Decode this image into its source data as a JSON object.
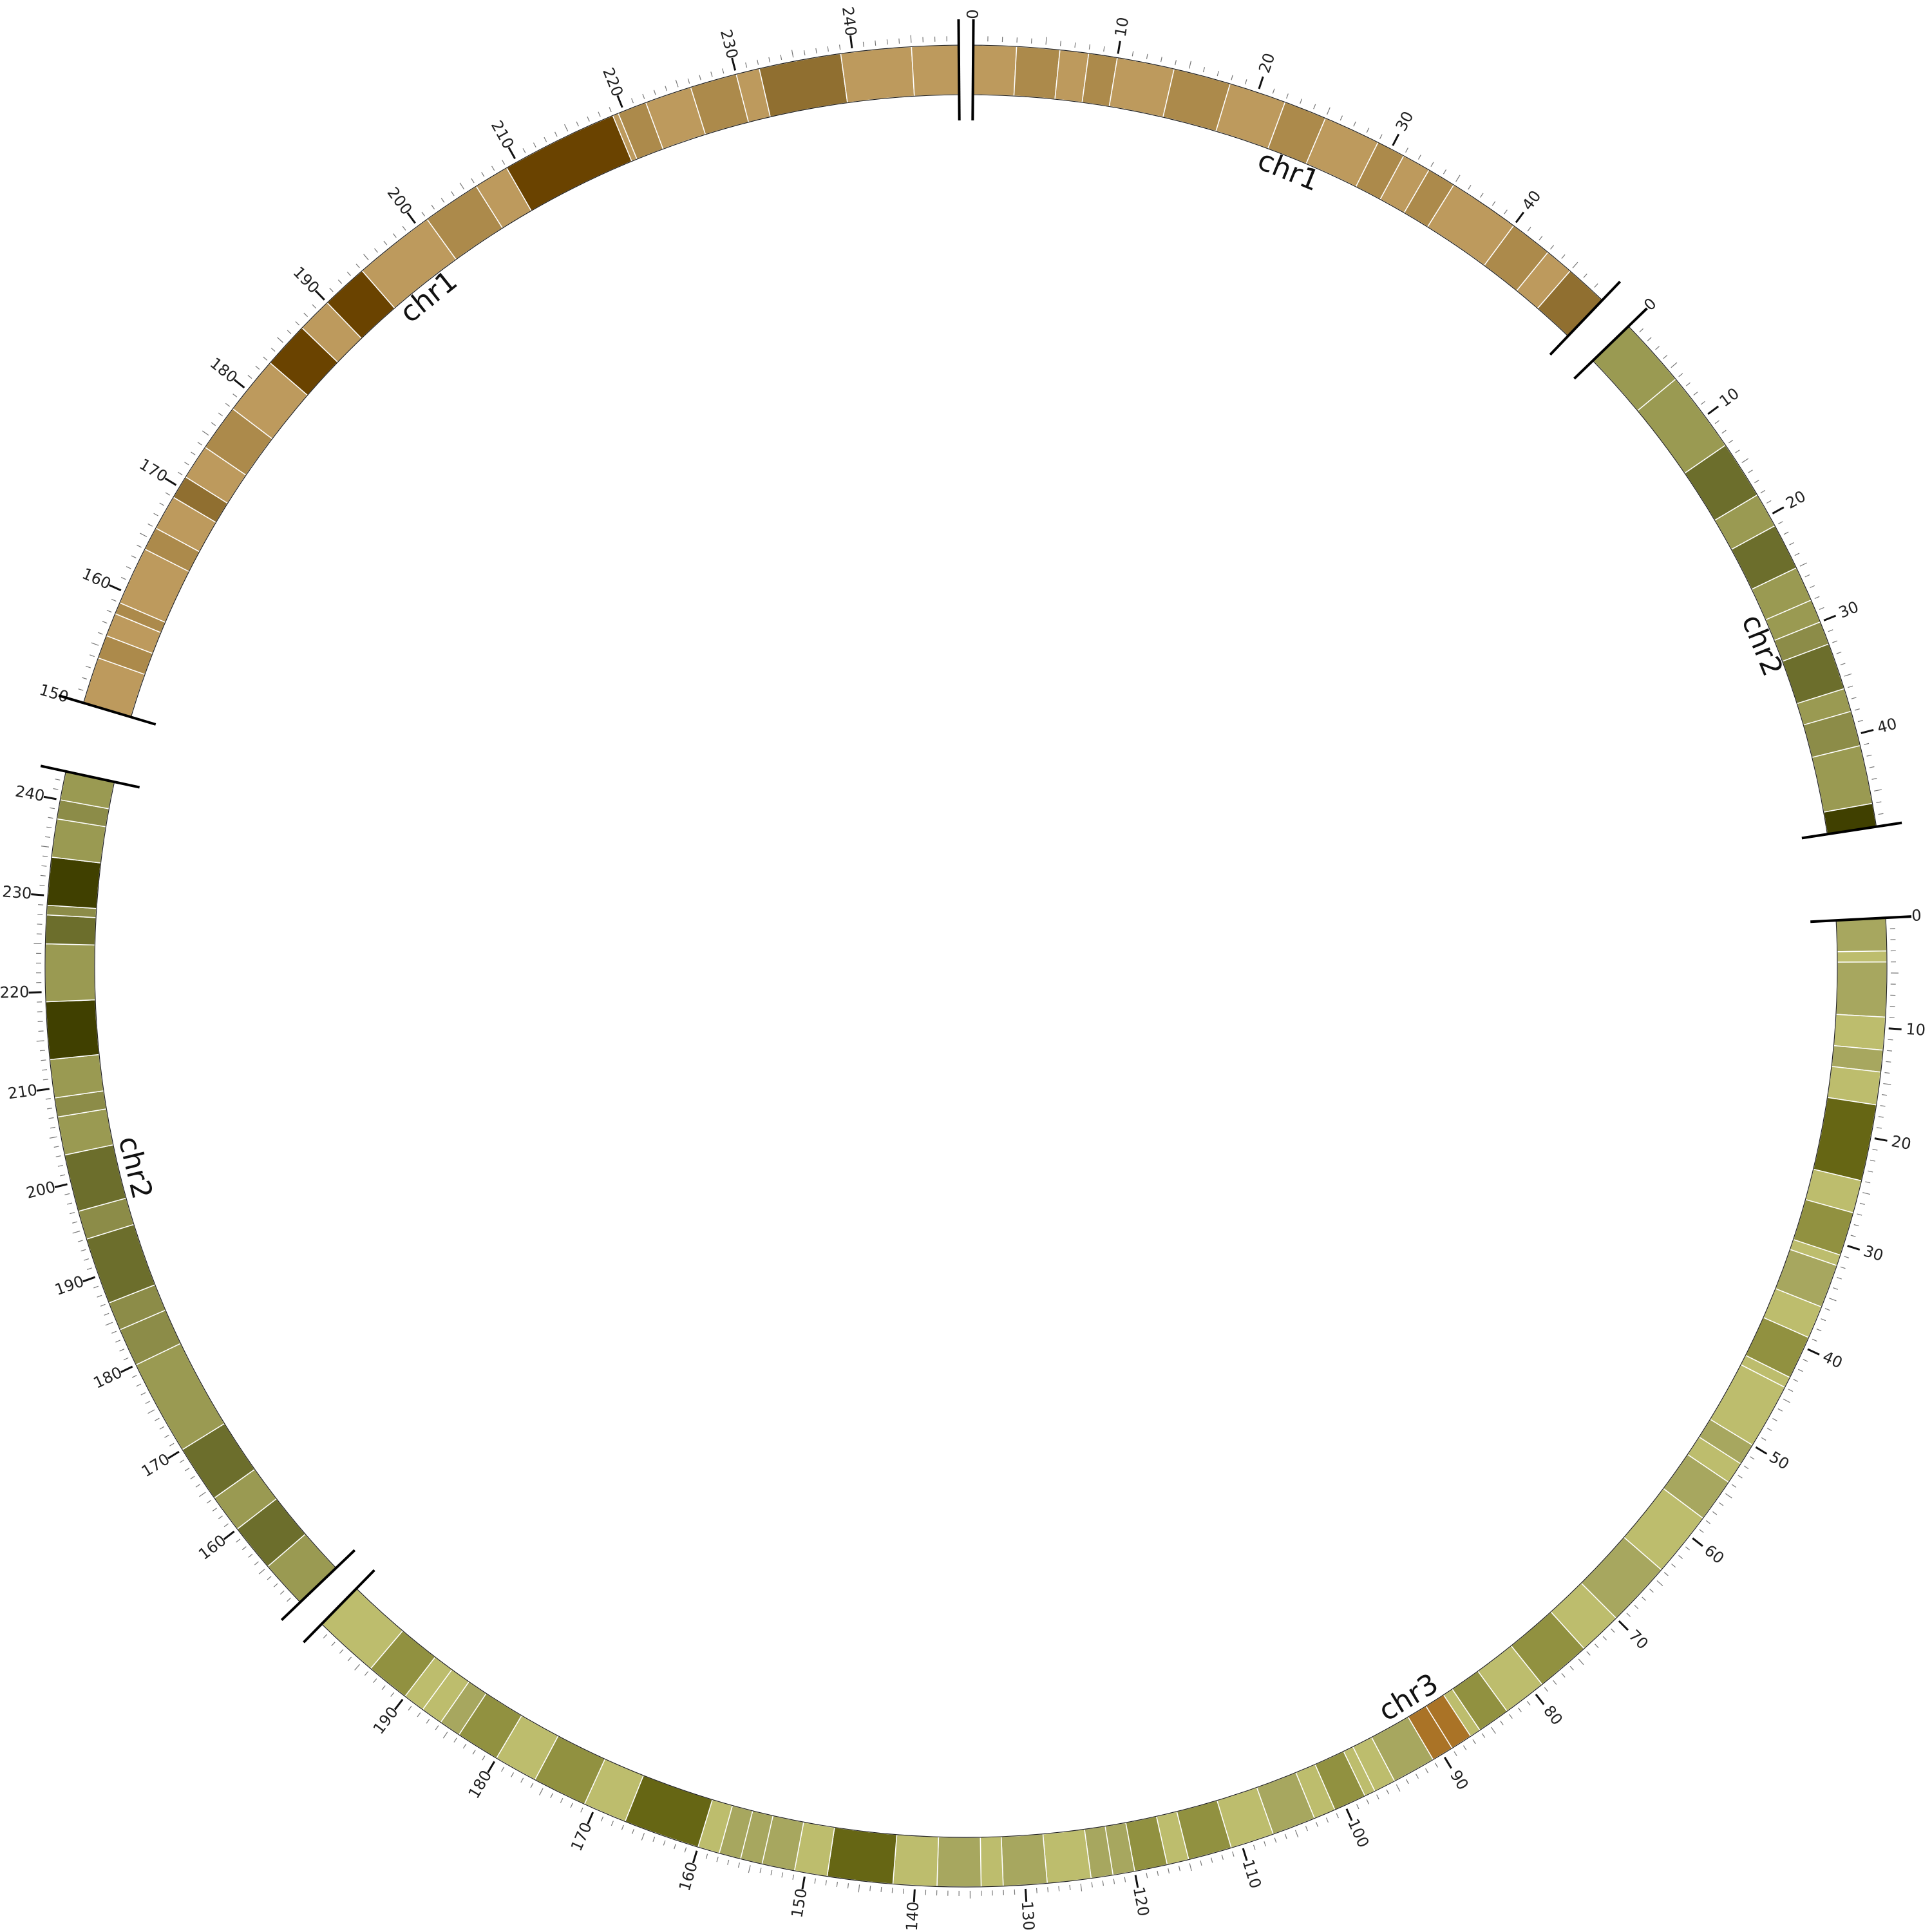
{
  "chart_data": {
    "type": "circos-ideogram",
    "title": "",
    "tick_unit": "Mb",
    "segments": [
      {
        "id": "chr1-a",
        "label": "chr1",
        "start": 0,
        "end": 48,
        "ticks": [
          "0",
          "10",
          "20",
          "30",
          "40"
        ],
        "bands": [
          {
            "start": 0,
            "end": 3,
            "color": "#bd9a5d"
          },
          {
            "start": 3,
            "end": 6,
            "color": "#ac8a4b"
          },
          {
            "start": 6,
            "end": 8,
            "color": "#bd9a5d"
          },
          {
            "start": 8,
            "end": 10,
            "color": "#ac8a4b"
          },
          {
            "start": 10,
            "end": 14,
            "color": "#bd9a5d"
          },
          {
            "start": 14,
            "end": 18,
            "color": "#ac8a4b"
          },
          {
            "start": 18,
            "end": 22,
            "color": "#bd9a5d"
          },
          {
            "start": 22,
            "end": 25,
            "color": "#ac8a4b"
          },
          {
            "start": 25,
            "end": 29,
            "color": "#bd9a5d"
          },
          {
            "start": 29,
            "end": 31,
            "color": "#ac8a4b"
          },
          {
            "start": 31,
            "end": 33,
            "color": "#bd9a5d"
          },
          {
            "start": 33,
            "end": 35,
            "color": "#ac8a4b"
          },
          {
            "start": 35,
            "end": 40,
            "color": "#bd9a5d"
          },
          {
            "start": 40,
            "end": 43,
            "color": "#ac8a4b"
          },
          {
            "start": 43,
            "end": 45,
            "color": "#bd9a5d"
          },
          {
            "start": 45,
            "end": 48,
            "color": "#906f30"
          }
        ]
      },
      {
        "id": "chr2-a",
        "label": "chr2",
        "start": 0,
        "end": 48,
        "ticks": [
          "0",
          "10",
          "20",
          "30",
          "40"
        ],
        "bands": [
          {
            "start": 0,
            "end": 6,
            "color": "#9a9a52"
          },
          {
            "start": 6,
            "end": 13,
            "color": "#9a9a52"
          },
          {
            "start": 13,
            "end": 18,
            "color": "#6c6e2c"
          },
          {
            "start": 18,
            "end": 21,
            "color": "#9a9a52"
          },
          {
            "start": 21,
            "end": 25,
            "color": "#6c6e2c"
          },
          {
            "start": 25,
            "end": 28,
            "color": "#9a9a52"
          },
          {
            "start": 28,
            "end": 30,
            "color": "#9a9a52"
          },
          {
            "start": 30,
            "end": 32,
            "color": "#8c8c48"
          },
          {
            "start": 32,
            "end": 36,
            "color": "#6c6e2c"
          },
          {
            "start": 36,
            "end": 38,
            "color": "#9a9a52"
          },
          {
            "start": 38,
            "end": 41,
            "color": "#8c8c48"
          },
          {
            "start": 41,
            "end": 46,
            "color": "#9a9a52"
          },
          {
            "start": 46,
            "end": 48,
            "color": "#404000"
          }
        ]
      },
      {
        "id": "chr3",
        "label": "chr3",
        "start": 0,
        "end": 200,
        "ticks": [
          "0",
          "10",
          "20",
          "30",
          "40",
          "50",
          "60",
          "70",
          "80",
          "90",
          "100",
          "110",
          "120",
          "130",
          "140",
          "150",
          "160",
          "170",
          "180",
          "190"
        ],
        "bands": [
          {
            "start": 0,
            "end": 3,
            "color": "#a7a75f"
          },
          {
            "start": 3,
            "end": 4,
            "color": "#bdbd6d"
          },
          {
            "start": 4,
            "end": 9,
            "color": "#a7a75f"
          },
          {
            "start": 9,
            "end": 12,
            "color": "#bdbd6d"
          },
          {
            "start": 12,
            "end": 14,
            "color": "#a7a75f"
          },
          {
            "start": 14,
            "end": 17,
            "color": "#bdbd6d"
          },
          {
            "start": 17,
            "end": 24,
            "color": "#666614"
          },
          {
            "start": 24,
            "end": 27,
            "color": "#bdbd6d"
          },
          {
            "start": 27,
            "end": 31,
            "color": "#919140"
          },
          {
            "start": 31,
            "end": 32,
            "color": "#bdbd6d"
          },
          {
            "start": 32,
            "end": 36,
            "color": "#a7a75f"
          },
          {
            "start": 36,
            "end": 39,
            "color": "#bdbd6d"
          },
          {
            "start": 39,
            "end": 43,
            "color": "#919140"
          },
          {
            "start": 43,
            "end": 44,
            "color": "#bdbd6d"
          },
          {
            "start": 44,
            "end": 50,
            "color": "#bdbd6d"
          },
          {
            "start": 50,
            "end": 52,
            "color": "#a7a75f"
          },
          {
            "start": 52,
            "end": 54,
            "color": "#bdbd6d"
          },
          {
            "start": 54,
            "end": 58,
            "color": "#a7a75f"
          },
          {
            "start": 58,
            "end": 64,
            "color": "#bdbd6d"
          },
          {
            "start": 64,
            "end": 70,
            "color": "#a7a75f"
          },
          {
            "start": 70,
            "end": 74,
            "color": "#bdbd6d"
          },
          {
            "start": 74,
            "end": 79,
            "color": "#919140"
          },
          {
            "start": 79,
            "end": 83,
            "color": "#bdbd6d"
          },
          {
            "start": 83,
            "end": 86,
            "color": "#919140"
          },
          {
            "start": 86,
            "end": 87,
            "color": "#bdbd6d"
          },
          {
            "start": 87,
            "end": 89,
            "color": "#aa7326"
          },
          {
            "start": 89,
            "end": 91,
            "color": "#aa7326"
          },
          {
            "start": 91,
            "end": 95,
            "color": "#a7a75f"
          },
          {
            "start": 95,
            "end": 97,
            "color": "#bdbd6d"
          },
          {
            "start": 97,
            "end": 98,
            "color": "#bdbd6d"
          },
          {
            "start": 98,
            "end": 101,
            "color": "#919140"
          },
          {
            "start": 101,
            "end": 103,
            "color": "#bdbd6d"
          },
          {
            "start": 103,
            "end": 107,
            "color": "#a7a75f"
          },
          {
            "start": 107,
            "end": 111,
            "color": "#bdbd6d"
          },
          {
            "start": 111,
            "end": 115,
            "color": "#919140"
          },
          {
            "start": 115,
            "end": 117,
            "color": "#bdbd6d"
          },
          {
            "start": 117,
            "end": 120,
            "color": "#919140"
          },
          {
            "start": 120,
            "end": 122,
            "color": "#a7a75f"
          },
          {
            "start": 122,
            "end": 124,
            "color": "#a7a75f"
          },
          {
            "start": 124,
            "end": 128,
            "color": "#bdbd6d"
          },
          {
            "start": 128,
            "end": 132,
            "color": "#a7a75f"
          },
          {
            "start": 132,
            "end": 134,
            "color": "#bdbd6d"
          },
          {
            "start": 134,
            "end": 138,
            "color": "#a7a75f"
          },
          {
            "start": 138,
            "end": 142,
            "color": "#bdbd6d"
          },
          {
            "start": 142,
            "end": 148,
            "color": "#666614"
          },
          {
            "start": 148,
            "end": 151,
            "color": "#bdbd6d"
          },
          {
            "start": 151,
            "end": 154,
            "color": "#a7a75f"
          },
          {
            "start": 154,
            "end": 156,
            "color": "#a7a75f"
          },
          {
            "start": 156,
            "end": 158,
            "color": "#a7a75f"
          },
          {
            "start": 158,
            "end": 160,
            "color": "#bdbd6d"
          },
          {
            "start": 160,
            "end": 167,
            "color": "#666614"
          },
          {
            "start": 167,
            "end": 171,
            "color": "#bdbd6d"
          },
          {
            "start": 171,
            "end": 176,
            "color": "#919140"
          },
          {
            "start": 176,
            "end": 180,
            "color": "#bdbd6d"
          },
          {
            "start": 180,
            "end": 184,
            "color": "#919140"
          },
          {
            "start": 184,
            "end": 186,
            "color": "#a7a75f"
          },
          {
            "start": 186,
            "end": 188,
            "color": "#bdbd6d"
          },
          {
            "start": 188,
            "end": 190,
            "color": "#bdbd6d"
          },
          {
            "start": 190,
            "end": 194,
            "color": "#919140"
          },
          {
            "start": 194,
            "end": 200,
            "color": "#bdbd6d"
          }
        ]
      },
      {
        "id": "chr2-b",
        "label": "chr2",
        "start": 150,
        "end": 243,
        "ticks": [
          "160",
          "170",
          "180",
          "190",
          "200",
          "210",
          "220",
          "230",
          "240"
        ],
        "bands": [
          {
            "start": 150,
            "end": 155,
            "color": "#9a9a52"
          },
          {
            "start": 155,
            "end": 160,
            "color": "#6c6e2c"
          },
          {
            "start": 160,
            "end": 164,
            "color": "#9a9a52"
          },
          {
            "start": 164,
            "end": 170,
            "color": "#6c6e2c"
          },
          {
            "start": 170,
            "end": 180,
            "color": "#9a9a52"
          },
          {
            "start": 180,
            "end": 184,
            "color": "#8c8c48"
          },
          {
            "start": 184,
            "end": 187,
            "color": "#8c8c48"
          },
          {
            "start": 187,
            "end": 194,
            "color": "#6c6e2c"
          },
          {
            "start": 194,
            "end": 197,
            "color": "#8c8c48"
          },
          {
            "start": 197,
            "end": 203,
            "color": "#6c6e2c"
          },
          {
            "start": 203,
            "end": 207,
            "color": "#9a9a52"
          },
          {
            "start": 207,
            "end": 209,
            "color": "#8c8c48"
          },
          {
            "start": 209,
            "end": 213,
            "color": "#9a9a52"
          },
          {
            "start": 213,
            "end": 219,
            "color": "#404000"
          },
          {
            "start": 219,
            "end": 225,
            "color": "#9a9a52"
          },
          {
            "start": 225,
            "end": 228,
            "color": "#6c6e2c"
          },
          {
            "start": 228,
            "end": 229,
            "color": "#8c8c48"
          },
          {
            "start": 229,
            "end": 234,
            "color": "#404000"
          },
          {
            "start": 234,
            "end": 238,
            "color": "#9a9a52"
          },
          {
            "start": 238,
            "end": 240,
            "color": "#8c8c48"
          },
          {
            "start": 240,
            "end": 243,
            "color": "#9a9a52"
          }
        ]
      },
      {
        "id": "chr1-b",
        "label": "chr1",
        "start": 150,
        "end": 249,
        "ticks": [
          "150",
          "160",
          "170",
          "180",
          "190",
          "200",
          "210",
          "220",
          "230",
          "240"
        ],
        "bands": [
          {
            "start": 150,
            "end": 154,
            "color": "#bd9a5d"
          },
          {
            "start": 154,
            "end": 156,
            "color": "#ac8a4b"
          },
          {
            "start": 156,
            "end": 158,
            "color": "#bd9a5d"
          },
          {
            "start": 158,
            "end": 159,
            "color": "#ac8a4b"
          },
          {
            "start": 159,
            "end": 164,
            "color": "#bd9a5d"
          },
          {
            "start": 164,
            "end": 166,
            "color": "#ac8a4b"
          },
          {
            "start": 166,
            "end": 169,
            "color": "#bd9a5d"
          },
          {
            "start": 169,
            "end": 171,
            "color": "#906f30"
          },
          {
            "start": 171,
            "end": 174,
            "color": "#bd9a5d"
          },
          {
            "start": 174,
            "end": 178,
            "color": "#ac8a4b"
          },
          {
            "start": 178,
            "end": 183,
            "color": "#bd9a5d"
          },
          {
            "start": 183,
            "end": 187,
            "color": "#6a4300"
          },
          {
            "start": 187,
            "end": 190,
            "color": "#bd9a5d"
          },
          {
            "start": 190,
            "end": 194,
            "color": "#6a4300"
          },
          {
            "start": 194,
            "end": 201,
            "color": "#bd9a5d"
          },
          {
            "start": 201,
            "end": 206,
            "color": "#ac8a4b"
          },
          {
            "start": 206,
            "end": 209,
            "color": "#bd9a5d"
          },
          {
            "start": 209,
            "end": 219,
            "color": "#6a4300"
          },
          {
            "start": 219,
            "end": 219.5,
            "color": "#bd9a5d"
          },
          {
            "start": 219.5,
            "end": 222,
            "color": "#ac8a4b"
          },
          {
            "start": 222,
            "end": 226,
            "color": "#bd9a5d"
          },
          {
            "start": 226,
            "end": 230,
            "color": "#ac8a4b"
          },
          {
            "start": 230,
            "end": 232,
            "color": "#bd9a5d"
          },
          {
            "start": 232,
            "end": 239,
            "color": "#906f30"
          },
          {
            "start": 239,
            "end": 245,
            "color": "#bd9a5d"
          },
          {
            "start": 245,
            "end": 249,
            "color": "#bd9a5d"
          }
        ]
      }
    ]
  }
}
